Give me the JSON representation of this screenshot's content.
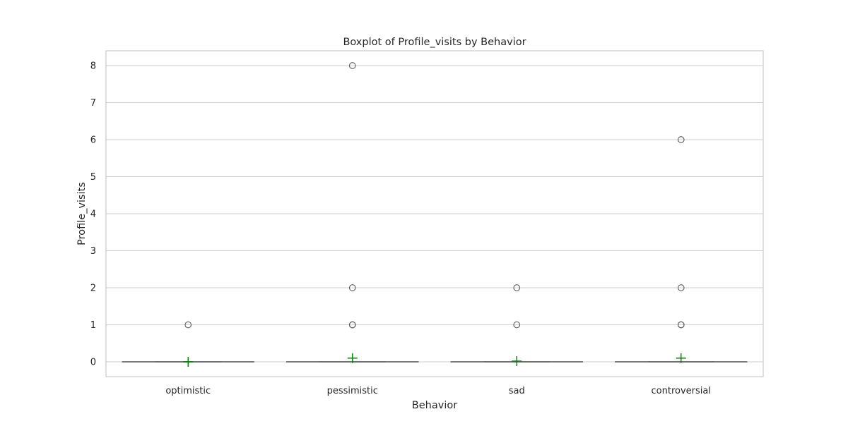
{
  "chart_data": {
    "type": "box",
    "title": "Boxplot of Profile_visits by Behavior",
    "xlabel": "Behavior",
    "ylabel": "Profile_visits",
    "ylim": [
      -0.4,
      8.4
    ],
    "yticks": [
      0,
      1,
      2,
      3,
      4,
      5,
      6,
      7,
      8
    ],
    "grid": "horizontal",
    "categories": [
      "optimistic",
      "pessimistic",
      "sad",
      "controversial"
    ],
    "boxes": [
      {
        "category": "optimistic",
        "min": 0,
        "q1": 0,
        "median": 0,
        "q3": 0,
        "max": 0,
        "mean": 0.0,
        "outliers": [
          1
        ]
      },
      {
        "category": "pessimistic",
        "min": 0,
        "q1": 0,
        "median": 0,
        "q3": 0,
        "max": 0,
        "mean": 0.1,
        "outliers": [
          1,
          1,
          2,
          8
        ]
      },
      {
        "category": "sad",
        "min": 0,
        "q1": 0,
        "median": 0,
        "q3": 0,
        "max": 0,
        "mean": 0.02,
        "outliers": [
          1,
          2
        ]
      },
      {
        "category": "controversial",
        "min": 0,
        "q1": 0,
        "median": 0,
        "q3": 0,
        "max": 0,
        "mean": 0.1,
        "outliers": [
          1,
          1,
          2,
          6
        ]
      }
    ],
    "colors": {
      "box": "#6b6b6b",
      "mean_marker": "#008000",
      "flier": "#5a5a5a",
      "grid": "#cccccc"
    }
  }
}
